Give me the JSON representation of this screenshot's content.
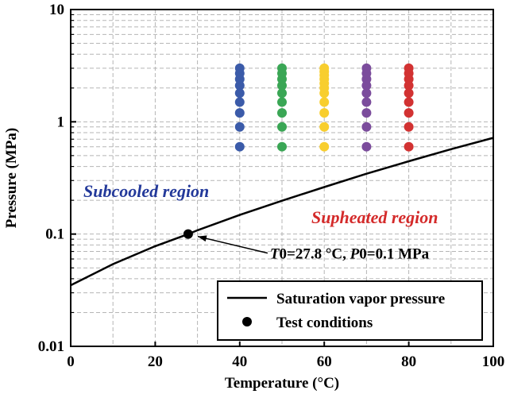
{
  "chart_data": {
    "type": "scatter",
    "xlabel": "Temperature (°C)",
    "ylabel": "Pressure (MPa)",
    "xlim": [
      0,
      100
    ],
    "ylim": [
      0.01,
      10
    ],
    "yscale": "log",
    "grid": true,
    "x_ticks": [
      "0",
      "20",
      "40",
      "60",
      "80",
      "100"
    ],
    "y_ticks": [
      "0.01",
      "0.1",
      "1",
      "10"
    ],
    "saturation_curve": {
      "name": "Saturation vapor pressure",
      "color": "#000000",
      "points": [
        [
          0,
          0.035
        ],
        [
          10,
          0.054
        ],
        [
          20,
          0.078
        ],
        [
          27.8,
          0.1
        ],
        [
          30,
          0.108
        ],
        [
          40,
          0.148
        ],
        [
          50,
          0.198
        ],
        [
          60,
          0.262
        ],
        [
          70,
          0.345
        ],
        [
          80,
          0.445
        ],
        [
          90,
          0.57
        ],
        [
          100,
          0.72
        ]
      ]
    },
    "test_point": {
      "name": "Test conditions",
      "x": 27.8,
      "y": 0.1,
      "color": "#000000",
      "label_parts": [
        {
          "text": "T",
          "italic": true
        },
        {
          "text": "0",
          "italic": false
        },
        {
          "text": "=27.8 °C, ",
          "italic": false
        },
        {
          "text": "P",
          "italic": true
        },
        {
          "text": "0",
          "italic": false
        },
        {
          "text": "=0.1 MPa",
          "italic": false
        }
      ]
    },
    "series": [
      {
        "x": 40,
        "color": "#3b5ba9",
        "values": [
          0.6,
          0.9,
          1.2,
          1.5,
          1.8,
          2.1,
          2.4,
          2.7,
          3.0
        ]
      },
      {
        "x": 50,
        "color": "#3aa655",
        "values": [
          0.6,
          0.9,
          1.2,
          1.5,
          1.8,
          2.1,
          2.4,
          2.7,
          3.0
        ]
      },
      {
        "x": 60,
        "color": "#f8ce2e",
        "values": [
          0.6,
          0.9,
          1.2,
          1.5,
          1.8,
          2.0,
          2.2,
          2.4,
          2.6,
          2.8,
          3.0
        ]
      },
      {
        "x": 70,
        "color": "#7b4c9c",
        "values": [
          0.6,
          0.9,
          1.2,
          1.5,
          1.8,
          2.1,
          2.4,
          2.7,
          3.0
        ]
      },
      {
        "x": 80,
        "color": "#d23232",
        "values": [
          0.6,
          0.9,
          1.2,
          1.5,
          1.8,
          2.1,
          2.4,
          2.7,
          3.0
        ]
      }
    ],
    "annotations": [
      {
        "text": "Subcooled region",
        "color": "#23399a"
      },
      {
        "text": "Supheated region",
        "color": "#d42a2a"
      }
    ],
    "legend": {
      "placement": "bottom-right",
      "entries": [
        {
          "label": "Saturation vapor pressure",
          "marker": "line"
        },
        {
          "label": "Test conditions",
          "marker": "dot"
        }
      ]
    }
  }
}
